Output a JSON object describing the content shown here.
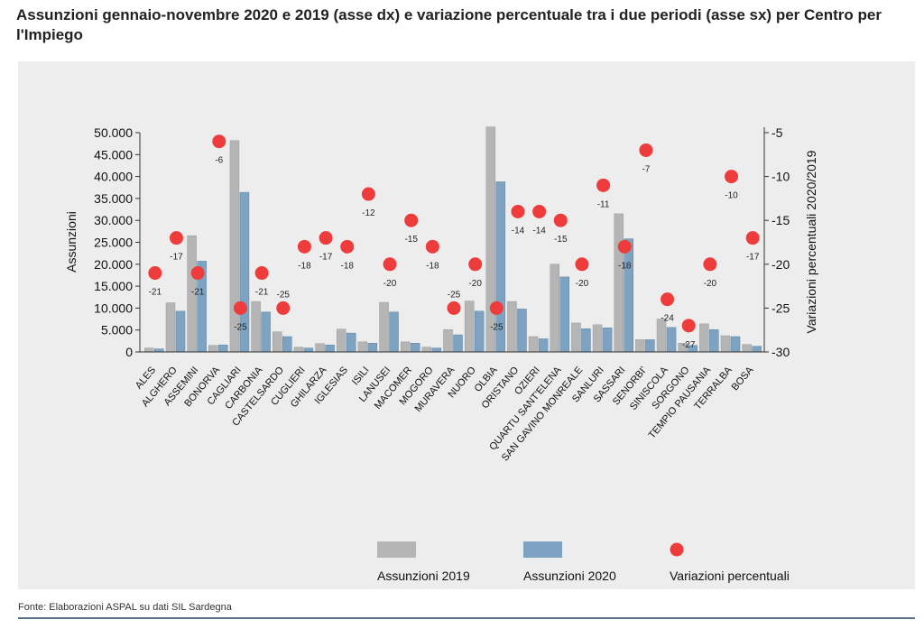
{
  "title": "Assunzioni gennaio-novembre 2020 e 2019 (asse dx) e variazione percentuale tra i due periodi (asse sx) per Centro per l'Impiego",
  "source": "Fonte: Elaborazioni ASPAL su dati SIL Sardegna",
  "colors": {
    "panel": "#ededed",
    "bar2019": "#b5b5b5",
    "bar2020": "#7ea3c2",
    "dot": "#ee3b3b"
  },
  "chart_data": {
    "type": "bar",
    "ylabel": "Assunzioni",
    "y2label": "Variazioni percentuali 2020/2019",
    "ylim": [
      0,
      50000
    ],
    "y2lim": [
      -30,
      -5
    ],
    "yticks": [
      "0",
      "5.000",
      "10.000",
      "15.000",
      "20.000",
      "25.000",
      "30.000",
      "35.000",
      "40.000",
      "45.000",
      "50.000"
    ],
    "y2ticks": [
      "-30",
      "-25",
      "-20",
      "-15",
      "-10",
      "-5"
    ],
    "categories": [
      "ALES",
      "ALGHERO",
      "ASSEMINI",
      "BONORVA",
      "CAGLIARI",
      "CARBONIA",
      "CASTELSARDO",
      "CUGLIERI",
      "GHILARZA",
      "IGLESIAS",
      "ISILI",
      "LANUSEI",
      "MACOMER",
      "MOGORO",
      "MURAVERA",
      "NUORO",
      "OLBIA",
      "ORISTANO",
      "OZIERI",
      "QUARTU SANT'ELENA",
      "SAN GAVINO MONREALE",
      "SANLURI",
      "SASSARI",
      "SENORBI'",
      "SINISCOLA",
      "SORGONO",
      "TEMPIO PAUSANIA",
      "TERRALBA",
      "BOSA"
    ],
    "series": [
      {
        "name": "Assunzioni 2019",
        "values": [
          900,
          11200,
          26500,
          1500,
          48200,
          11500,
          4600,
          1100,
          1900,
          5200,
          2300,
          11300,
          2300,
          1100,
          5100,
          11600,
          51300,
          11500,
          3500,
          20000,
          6600,
          6200,
          31500,
          2800,
          7500,
          2000,
          6400,
          3700,
          1700
        ]
      },
      {
        "name": "Assunzioni 2020",
        "values": [
          700,
          9300,
          20700,
          1600,
          36400,
          9100,
          3500,
          900,
          1600,
          4300,
          2000,
          9100,
          2000,
          900,
          3900,
          9300,
          38800,
          9800,
          3000,
          17100,
          5300,
          5500,
          25800,
          2800,
          5600,
          1500,
          5100,
          3500,
          1300
        ]
      },
      {
        "name": "Variazioni percentuali",
        "axis": "right",
        "values": [
          -21,
          -17,
          -21,
          -6,
          -25,
          -21,
          -25,
          -18,
          -17,
          -18,
          -12,
          -20,
          -15,
          -18,
          -25,
          -20,
          -25,
          -14,
          -14,
          -15,
          -20,
          -11,
          -18,
          -7,
          -24,
          -27,
          -20,
          -10,
          -17
        ]
      }
    ],
    "pct_label_pos": [
      "below",
      "below",
      "below",
      "below",
      "below",
      "below",
      "above",
      "below",
      "below",
      "below",
      "below",
      "below",
      "below",
      "below",
      "above",
      "below",
      "below",
      "below",
      "below",
      "below",
      "below",
      "below",
      "below",
      "below",
      "below",
      "below",
      "below",
      "below",
      "below"
    ],
    "legend": {
      "position": "bottom",
      "items": [
        "Assunzioni 2019",
        "Assunzioni 2020",
        "Variazioni percentuali"
      ]
    }
  }
}
